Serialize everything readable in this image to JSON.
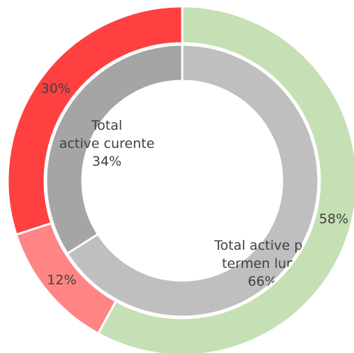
{
  "chart_data": {
    "type": "donut",
    "rings": [
      {
        "categories": [
          "Total active pe termen lung",
          "Total active curente"
        ],
        "values": [
          66,
          34
        ],
        "value_labels": [
          "66%",
          "34%"
        ],
        "colors": [
          "#bfbfbf",
          "#a5a5a5"
        ]
      },
      {
        "values": [
          58,
          12,
          30
        ],
        "value_labels": [
          "58%",
          "12%",
          "30%"
        ],
        "colors": [
          "#c5e0b4",
          "#ff8585",
          "#ff4040"
        ]
      }
    ]
  }
}
